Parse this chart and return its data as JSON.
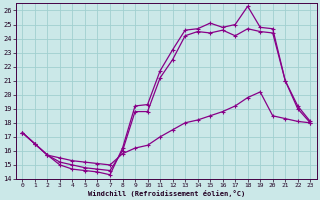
{
  "xlabel": "Windchill (Refroidissement éolien,°C)",
  "bg_color": "#cbe8e8",
  "line_color": "#880088",
  "grid_color": "#a0d0d0",
  "xlim": [
    -0.5,
    23.5
  ],
  "ylim": [
    14,
    26.5
  ],
  "xticks": [
    0,
    1,
    2,
    3,
    4,
    5,
    6,
    7,
    8,
    9,
    10,
    11,
    12,
    13,
    14,
    15,
    16,
    17,
    18,
    19,
    20,
    21,
    22,
    23
  ],
  "yticks": [
    14,
    15,
    16,
    17,
    18,
    19,
    20,
    21,
    22,
    23,
    24,
    25,
    26
  ],
  "curve1_x": [
    0,
    1,
    2,
    3,
    4,
    5,
    6,
    7,
    8,
    9,
    10,
    11,
    12,
    13,
    14,
    15,
    16,
    17,
    18,
    19,
    20,
    21,
    22,
    23
  ],
  "curve1_y": [
    17.3,
    16.5,
    15.7,
    15.0,
    14.7,
    14.6,
    14.5,
    14.3,
    16.2,
    19.2,
    19.3,
    21.7,
    23.2,
    24.6,
    24.7,
    25.1,
    24.8,
    25.0,
    26.3,
    24.8,
    24.7,
    21.0,
    19.0,
    18.0
  ],
  "curve2_x": [
    0,
    1,
    2,
    3,
    4,
    5,
    6,
    7,
    8,
    9,
    10,
    11,
    12,
    13,
    14,
    15,
    16,
    17,
    18,
    19,
    20,
    21,
    22,
    23
  ],
  "curve2_y": [
    17.3,
    16.5,
    15.7,
    15.2,
    15.0,
    14.8,
    14.7,
    14.6,
    16.0,
    18.8,
    18.8,
    21.2,
    22.5,
    24.2,
    24.5,
    24.4,
    24.6,
    24.2,
    24.7,
    24.5,
    24.4,
    21.0,
    19.2,
    18.1
  ],
  "curve3_x": [
    0,
    1,
    2,
    3,
    4,
    5,
    6,
    7,
    8,
    9,
    10,
    11,
    12,
    13,
    14,
    15,
    16,
    17,
    18,
    19,
    20,
    21,
    22,
    23
  ],
  "curve3_y": [
    17.3,
    16.5,
    15.7,
    15.5,
    15.3,
    15.2,
    15.1,
    15.0,
    15.8,
    16.2,
    16.4,
    17.0,
    17.5,
    18.0,
    18.2,
    18.5,
    18.8,
    19.2,
    19.8,
    20.2,
    18.5,
    18.3,
    18.1,
    18.0
  ]
}
